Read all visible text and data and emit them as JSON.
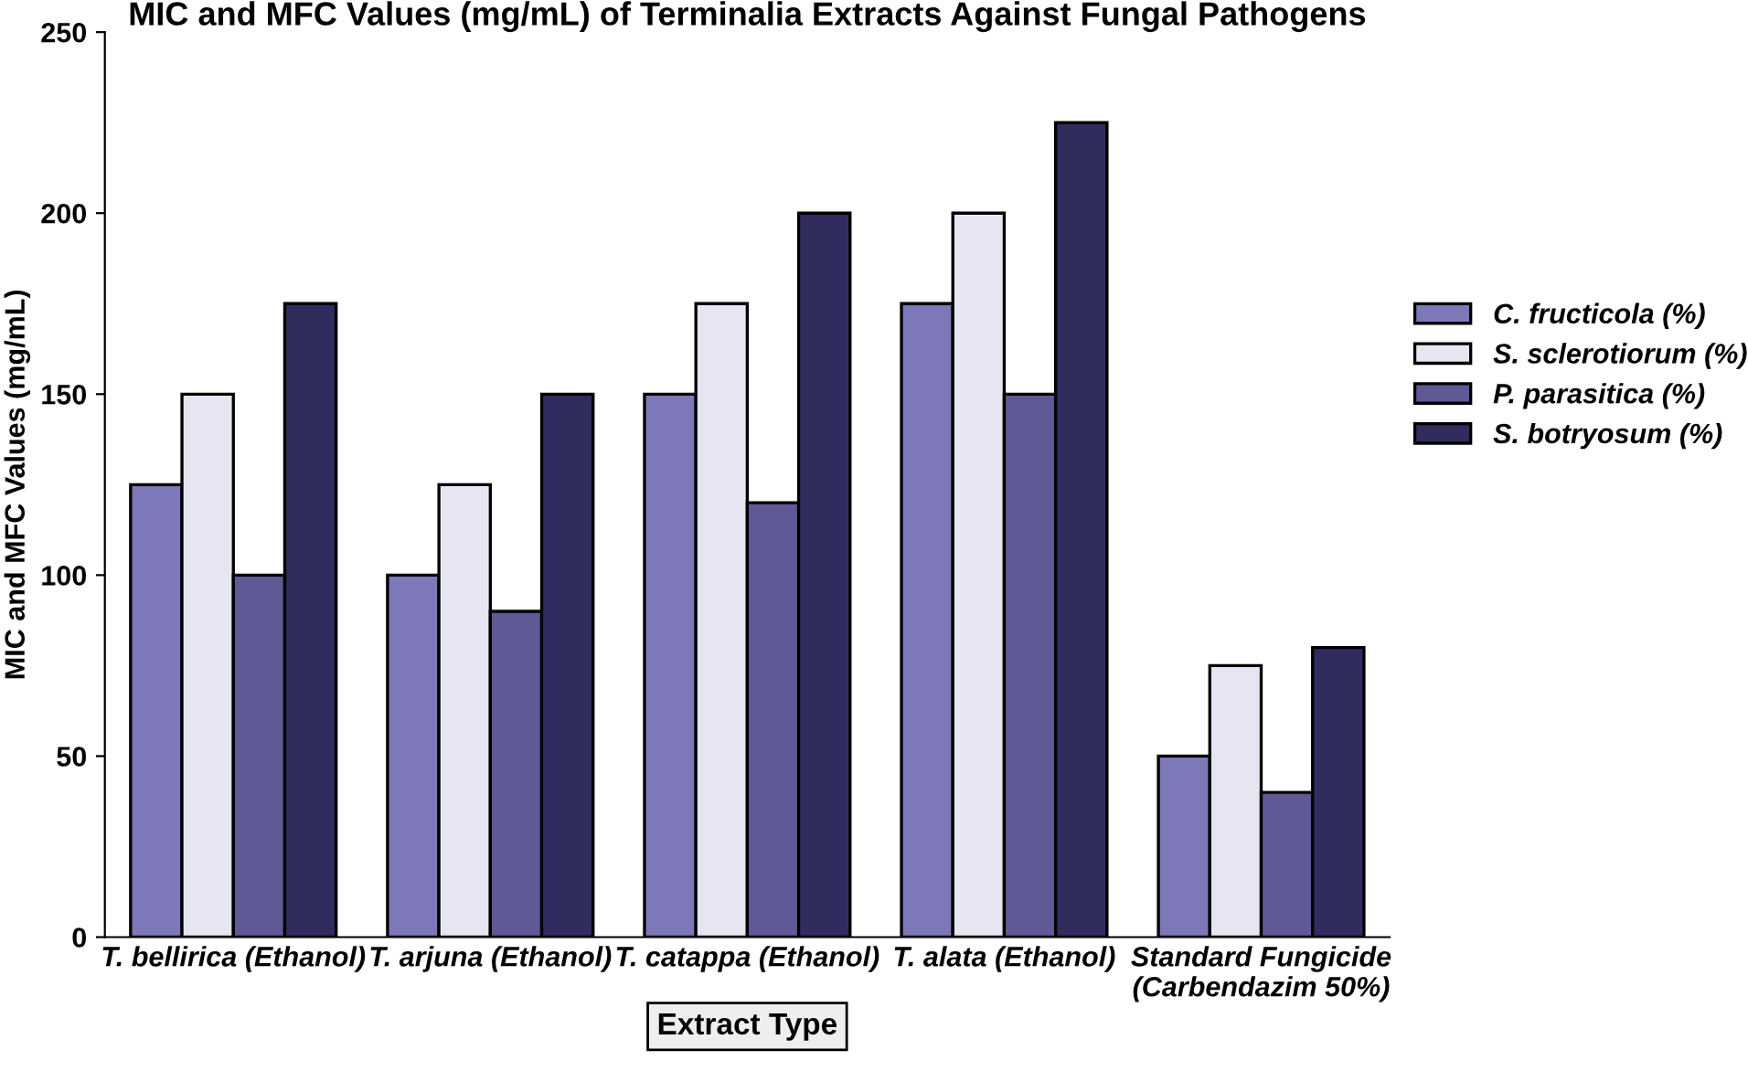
{
  "chart_data": {
    "type": "bar",
    "title": "MIC and MFC Values (mg/mL) of Terminalia Extracts Against Fungal Pathogens",
    "xlabel": "Extract Type",
    "ylabel": "MIC and MFC Values (mg/mL)",
    "categories": [
      "T. bellirica (Ethanol)",
      "T. arjuna (Ethanol)",
      "T. catappa (Ethanol)",
      "T. alata (Ethanol)",
      "Standard Fungicide\n(Carbendazim 50%)"
    ],
    "series": [
      {
        "name": "C. fructicola (%)",
        "color": "#7d78b8",
        "values": [
          125,
          100,
          150,
          175,
          50
        ]
      },
      {
        "name": "S. sclerotiorum (%)",
        "color": "#e6e6f2",
        "values": [
          150,
          125,
          175,
          200,
          75
        ]
      },
      {
        "name": "P. parasitica (%)",
        "color": "#5f5a96",
        "values": [
          100,
          90,
          120,
          150,
          40
        ]
      },
      {
        "name": "S. botryosum (%)",
        "color": "#312c5e",
        "values": [
          175,
          150,
          200,
          225,
          80
        ]
      }
    ],
    "ylim": [
      0,
      250
    ],
    "yticks": [
      0,
      50,
      100,
      150,
      200,
      250
    ],
    "grid": false,
    "legend": "right"
  }
}
